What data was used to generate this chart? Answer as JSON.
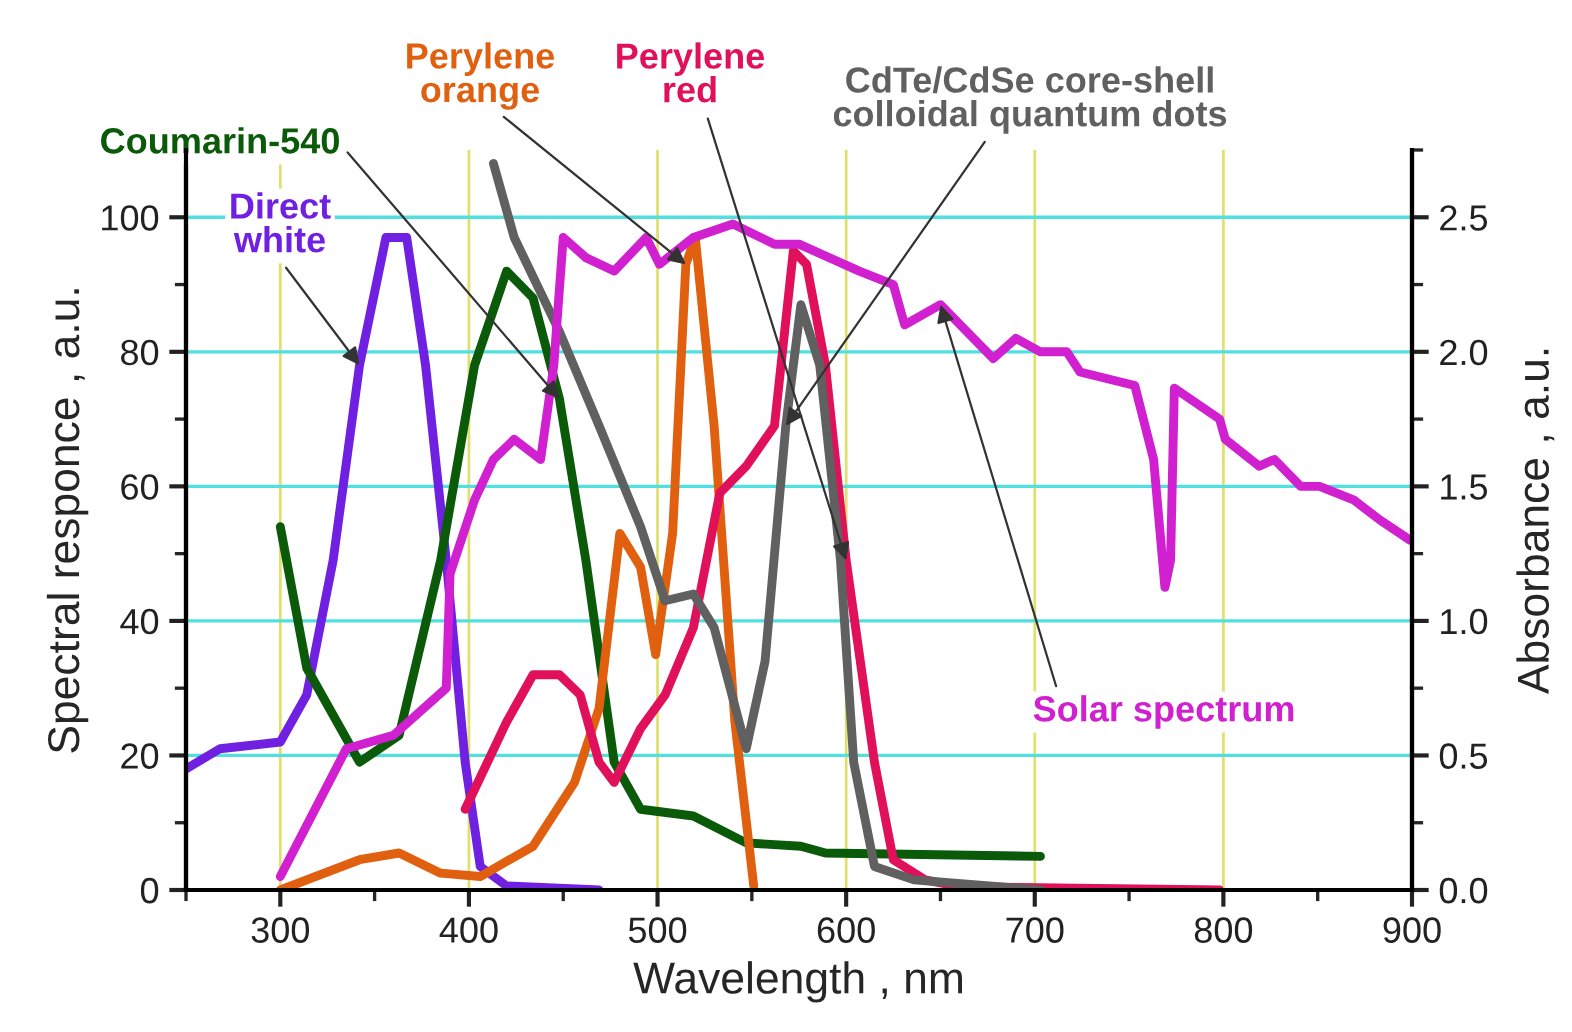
{
  "chart_data": {
    "type": "line",
    "xlabel": "Wavelength , nm",
    "ylabel": "Spectral responce , a.u.",
    "y2label": "Absorbance , a.u.",
    "xlim": [
      250,
      900
    ],
    "xticks": [
      300,
      400,
      500,
      600,
      700,
      800,
      900
    ],
    "ylim": [
      0,
      110
    ],
    "yticks": [
      0,
      20,
      40,
      60,
      80,
      100
    ],
    "y2lim": [
      0,
      2.75
    ],
    "y2ticks": [
      {
        "value": 0,
        "label": "0.0"
      },
      {
        "value": 0.5,
        "label": "0.5"
      },
      {
        "value": 1,
        "label": "1.0"
      },
      {
        "value": 1.5,
        "label": "1.5"
      },
      {
        "value": 2,
        "label": "2.0"
      },
      {
        "value": 2.5,
        "label": "2.5"
      }
    ],
    "grid": true,
    "marker": "none",
    "line_style": "solid",
    "series": [
      {
        "name": "Direct\nwhite",
        "color": "#7020e0",
        "x": [
          250,
          268,
          300,
          314,
          328,
          342,
          356,
          367,
          377,
          388,
          398,
          406,
          420,
          469
        ],
        "values": [
          18,
          21,
          22,
          29,
          49,
          78,
          97,
          97,
          78,
          49,
          19,
          3.5,
          0.6,
          0
        ]
      },
      {
        "name": "Coumarin-540",
        "color": "#0a5a0a",
        "x": [
          300,
          314,
          342,
          363,
          385,
          403,
          420,
          434,
          448,
          462,
          477,
          491,
          519,
          547,
          576,
          589,
          703
        ],
        "values": [
          54,
          33,
          19,
          23,
          49,
          78,
          92,
          88,
          73,
          49,
          19,
          12,
          11,
          7,
          6.5,
          5.5,
          5
        ]
      },
      {
        "name": "Perylene\norange",
        "color": "#e06010",
        "x": [
          300,
          342,
          363,
          385,
          406,
          434,
          456,
          469,
          480,
          491,
          499,
          508,
          515,
          520,
          530,
          541,
          551
        ],
        "values": [
          0,
          4.5,
          5.5,
          2.5,
          2,
          6.5,
          16,
          27,
          53,
          48,
          35,
          53,
          93,
          97,
          69,
          25,
          0.6
        ]
      },
      {
        "name": "Perylene\nred",
        "color": "#e0105a",
        "x": [
          398,
          420,
          434,
          448,
          459,
          469,
          477,
          491,
          504,
          519,
          533,
          547,
          562,
          572,
          579,
          589,
          600,
          615,
          625,
          642,
          660,
          798
        ],
        "values": [
          12,
          25,
          32,
          32,
          29,
          19,
          16,
          24,
          29,
          39,
          59,
          63,
          69,
          95,
          93,
          78,
          49,
          19,
          4.5,
          1.5,
          0.5,
          0
        ]
      },
      {
        "name": "CdTe/CdSe core-shell\ncolloidal quantum dots",
        "color": "#606060",
        "x": [
          413,
          424,
          448,
          469,
          491,
          504,
          519,
          530,
          547,
          557,
          568,
          576,
          586,
          597,
          604,
          615,
          636,
          703
        ],
        "values": [
          108,
          97,
          83,
          69,
          54,
          43,
          44,
          39,
          21,
          34,
          69,
          87,
          78,
          49,
          19,
          3.5,
          1.5,
          0
        ]
      },
      {
        "name": "Solar spectrum",
        "color": "#d020d0",
        "x": [
          300,
          335,
          360,
          388,
          390,
          403,
          413,
          424,
          438,
          445,
          450,
          462,
          477,
          494,
          501,
          519,
          540,
          562,
          575,
          607,
          625,
          631,
          650,
          678,
          690,
          703,
          717,
          724,
          753,
          763,
          769,
          772,
          774,
          798,
          801,
          819,
          827,
          841,
          851,
          869,
          883,
          899
        ],
        "values": [
          2,
          21,
          23,
          30,
          47,
          58,
          64,
          67,
          64,
          78,
          97,
          94,
          92,
          97,
          93,
          97,
          99,
          96,
          96,
          92,
          90,
          84,
          87,
          79,
          82,
          80,
          80,
          77,
          75,
          64,
          45,
          49,
          74.6,
          70,
          67,
          63,
          64,
          60,
          60,
          58,
          55,
          52
        ]
      }
    ]
  }
}
